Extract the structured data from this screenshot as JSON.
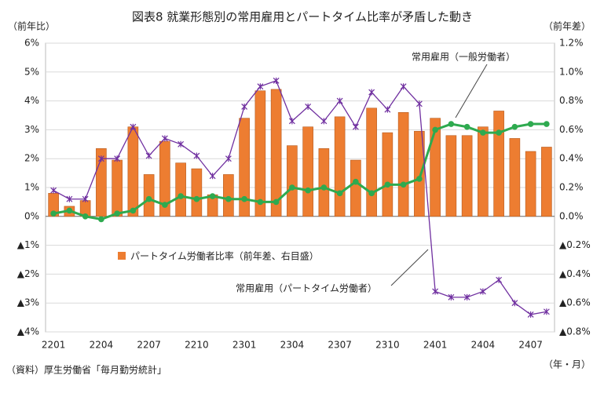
{
  "chart_data": {
    "type": "bar",
    "title": "図表8 就業形態別の常用雇用とパートタイム比率が矛盾した動き",
    "y_axis_label": "（前年比）",
    "y2_axis_label": "（前年差）",
    "x_axis_label": "（年・月）",
    "source": "（資料）厚生労働省「毎月勤労統計」",
    "categories": [
      "2201",
      null,
      null,
      "2204",
      null,
      null,
      "2207",
      null,
      null,
      "2210",
      null,
      null,
      "2301",
      null,
      null,
      "2304",
      null,
      null,
      "2307",
      null,
      null,
      "2310",
      null,
      null,
      "2401",
      null,
      null,
      "2404",
      null,
      null,
      "2407",
      null
    ],
    "ylim": [
      -4,
      6
    ],
    "yticks": [
      {
        "value": -4,
        "label": "▲4%"
      },
      {
        "value": -3,
        "label": "▲3%"
      },
      {
        "value": -2,
        "label": "▲2%"
      },
      {
        "value": -1,
        "label": "▲1%"
      },
      {
        "value": 0,
        "label": "0%"
      },
      {
        "value": 1,
        "label": "1%"
      },
      {
        "value": 2,
        "label": "2%"
      },
      {
        "value": 3,
        "label": "3%"
      },
      {
        "value": 4,
        "label": "4%"
      },
      {
        "value": 5,
        "label": "5%"
      },
      {
        "value": 6,
        "label": "6%"
      }
    ],
    "y2lim": [
      -0.8,
      1.2
    ],
    "y2ticks": [
      {
        "value": -0.8,
        "label": "▲0.8%"
      },
      {
        "value": -0.6,
        "label": "▲0.6%"
      },
      {
        "value": -0.4,
        "label": "▲0.4%"
      },
      {
        "value": -0.2,
        "label": "▲0.2%"
      },
      {
        "value": 0,
        "label": "0.0%"
      },
      {
        "value": 0.2,
        "label": "0.2%"
      },
      {
        "value": 0.4,
        "label": "0.4%"
      },
      {
        "value": 0.6,
        "label": "0.6%"
      },
      {
        "value": 0.8,
        "label": "0.8%"
      },
      {
        "value": 1.0,
        "label": "1.0%"
      },
      {
        "value": 1.2,
        "label": "1.2%"
      }
    ],
    "grid": true,
    "series": [
      {
        "name": "パートタイム労働者比率（前年差、右目盛）",
        "type": "bar",
        "axis": "y2",
        "color": "#ED7D31",
        "values": [
          0.16,
          0.07,
          0.11,
          0.47,
          0.39,
          0.62,
          0.29,
          0.52,
          0.37,
          0.33,
          0.15,
          0.29,
          0.68,
          0.87,
          0.88,
          0.49,
          0.62,
          0.47,
          0.69,
          0.39,
          0.75,
          0.58,
          0.72,
          0.59,
          0.68,
          0.56,
          0.56,
          0.62,
          0.73,
          0.54,
          0.45,
          0.48
        ]
      },
      {
        "name": "常用雇用（一般労働者）",
        "type": "line",
        "color": "#2EAA4F",
        "values": [
          0.1,
          0.2,
          0.0,
          -0.1,
          0.1,
          0.2,
          0.6,
          0.4,
          0.7,
          0.6,
          0.7,
          0.6,
          0.6,
          0.5,
          0.5,
          1.0,
          0.9,
          1.0,
          0.8,
          1.2,
          0.8,
          1.1,
          1.1,
          1.3,
          3.0,
          3.2,
          3.1,
          2.9,
          2.9,
          3.1,
          3.2,
          3.2
        ]
      },
      {
        "name": "常用雇用（パートタイム労働者）",
        "type": "line",
        "color": "#7030A0",
        "values": [
          0.9,
          0.6,
          0.6,
          2.0,
          2.0,
          3.1,
          2.1,
          2.7,
          2.5,
          2.1,
          1.4,
          2.0,
          3.8,
          4.5,
          4.7,
          3.3,
          3.8,
          3.3,
          4.0,
          3.1,
          4.3,
          3.7,
          4.5,
          3.9,
          -2.6,
          -2.8,
          -2.8,
          -2.6,
          -2.2,
          -3.0,
          -3.4,
          -3.3
        ]
      }
    ]
  }
}
